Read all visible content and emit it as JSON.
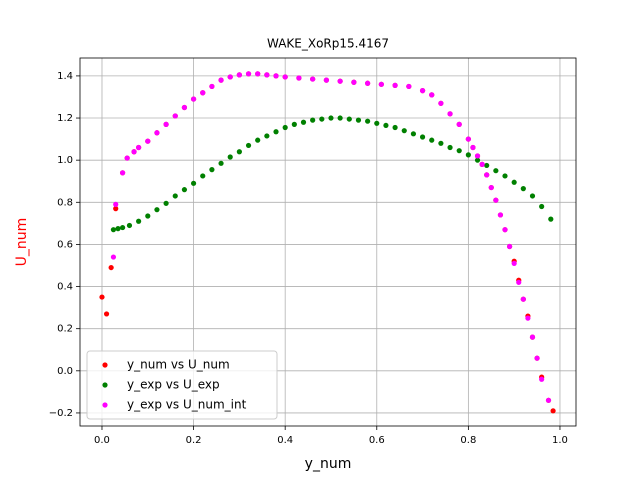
{
  "chart_data": {
    "type": "scatter",
    "title": "WAKE_XoRp15.4167",
    "x_label": "y_num",
    "y_label": "U_num",
    "y_label_color": "#ff0000",
    "xlim": [
      -0.048,
      1.035
    ],
    "ylim": [
      -0.262,
      1.485
    ],
    "xticks": [
      {
        "value": 0,
        "label": "0.0"
      },
      0.2,
      0.4,
      0.6,
      0.8,
      {
        "value": 1,
        "label": "1.0"
      }
    ],
    "yticks": [
      {
        "value": -0.2,
        "label": "−0.2"
      },
      {
        "value": 0,
        "label": "0.0"
      },
      0.2,
      0.4,
      0.6,
      0.8,
      {
        "value": 1,
        "label": "1.0"
      },
      1.2,
      1.4
    ],
    "grid": true,
    "legend": "lower left",
    "series": [
      {
        "name": "y_num vs U_num",
        "color": "#ff0000",
        "x": [
          0.0,
          0.01,
          0.02,
          0.03,
          0.045,
          0.055,
          0.07,
          0.08,
          0.1,
          0.12,
          0.14,
          0.16,
          0.18,
          0.2,
          0.22,
          0.24,
          0.26,
          0.28,
          0.3,
          0.32,
          0.34,
          0.36,
          0.38,
          0.4,
          0.43,
          0.46,
          0.49,
          0.52,
          0.55,
          0.58,
          0.61,
          0.64,
          0.67,
          0.7,
          0.72,
          0.74,
          0.76,
          0.78,
          0.8,
          0.81,
          0.82,
          0.83,
          0.84,
          0.85,
          0.86,
          0.87,
          0.88,
          0.89,
          0.9,
          0.91,
          0.92,
          0.93,
          0.94,
          0.95,
          0.96,
          0.975,
          0.985
        ],
        "values": [
          0.35,
          0.27,
          0.49,
          0.77,
          0.94,
          1.01,
          1.04,
          1.06,
          1.09,
          1.13,
          1.17,
          1.21,
          1.25,
          1.29,
          1.32,
          1.35,
          1.38,
          1.395,
          1.405,
          1.41,
          1.41,
          1.405,
          1.4,
          1.395,
          1.39,
          1.385,
          1.38,
          1.375,
          1.37,
          1.365,
          1.36,
          1.355,
          1.35,
          1.33,
          1.31,
          1.27,
          1.22,
          1.17,
          1.1,
          1.06,
          1.02,
          0.98,
          0.93,
          0.87,
          0.81,
          0.74,
          0.67,
          0.59,
          0.52,
          0.43,
          0.34,
          0.26,
          0.16,
          0.06,
          -0.03,
          -0.14,
          -0.19
        ]
      },
      {
        "name": "y_exp vs U_exp",
        "color": "#008000",
        "x": [
          0.025,
          0.035,
          0.045,
          0.06,
          0.08,
          0.1,
          0.12,
          0.14,
          0.16,
          0.18,
          0.2,
          0.22,
          0.24,
          0.26,
          0.28,
          0.3,
          0.32,
          0.34,
          0.36,
          0.38,
          0.4,
          0.42,
          0.44,
          0.46,
          0.48,
          0.5,
          0.52,
          0.54,
          0.56,
          0.58,
          0.6,
          0.62,
          0.64,
          0.66,
          0.68,
          0.7,
          0.72,
          0.74,
          0.76,
          0.78,
          0.8,
          0.82,
          0.84,
          0.86,
          0.88,
          0.9,
          0.92,
          0.94,
          0.96,
          0.98
        ],
        "values": [
          0.67,
          0.675,
          0.68,
          0.69,
          0.71,
          0.735,
          0.765,
          0.795,
          0.83,
          0.86,
          0.89,
          0.925,
          0.955,
          0.985,
          1.015,
          1.04,
          1.07,
          1.095,
          1.115,
          1.135,
          1.155,
          1.17,
          1.18,
          1.19,
          1.195,
          1.2,
          1.2,
          1.195,
          1.19,
          1.185,
          1.175,
          1.165,
          1.155,
          1.14,
          1.125,
          1.11,
          1.095,
          1.08,
          1.06,
          1.045,
          1.025,
          1.0,
          0.975,
          0.95,
          0.925,
          0.895,
          0.865,
          0.83,
          0.78,
          0.72
        ]
      },
      {
        "name": "y_exp vs U_num_int",
        "color": "#ff00ff",
        "x": [
          0.025,
          0.03,
          0.045,
          0.055,
          0.07,
          0.08,
          0.1,
          0.12,
          0.14,
          0.16,
          0.18,
          0.2,
          0.22,
          0.24,
          0.26,
          0.28,
          0.3,
          0.32,
          0.34,
          0.36,
          0.38,
          0.4,
          0.43,
          0.46,
          0.49,
          0.52,
          0.55,
          0.58,
          0.61,
          0.64,
          0.67,
          0.7,
          0.72,
          0.74,
          0.76,
          0.78,
          0.8,
          0.81,
          0.82,
          0.83,
          0.84,
          0.85,
          0.86,
          0.87,
          0.88,
          0.89,
          0.9,
          0.91,
          0.92,
          0.93,
          0.94,
          0.95,
          0.96,
          0.975
        ],
        "values": [
          0.54,
          0.79,
          0.94,
          1.01,
          1.04,
          1.06,
          1.09,
          1.13,
          1.17,
          1.21,
          1.25,
          1.29,
          1.32,
          1.35,
          1.38,
          1.395,
          1.405,
          1.41,
          1.41,
          1.405,
          1.4,
          1.395,
          1.39,
          1.385,
          1.38,
          1.375,
          1.37,
          1.365,
          1.36,
          1.355,
          1.35,
          1.33,
          1.31,
          1.27,
          1.22,
          1.17,
          1.1,
          1.06,
          1.02,
          0.98,
          0.93,
          0.87,
          0.81,
          0.74,
          0.67,
          0.59,
          0.51,
          0.42,
          0.34,
          0.25,
          0.16,
          0.06,
          -0.04,
          -0.14
        ]
      }
    ]
  }
}
